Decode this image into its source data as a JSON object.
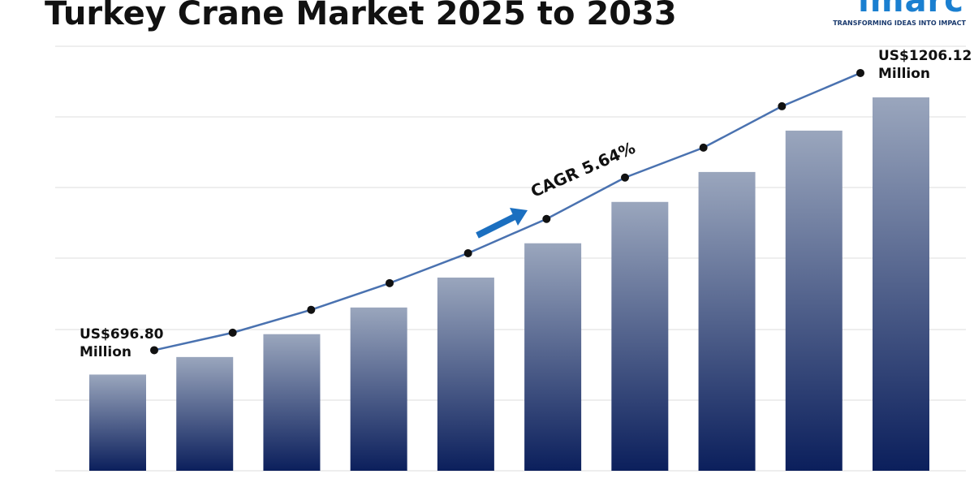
{
  "chart_data": {
    "type": "bar",
    "title": "Turkey Crane Market 2025 to 2033",
    "brand": "imarc",
    "tagline": "TRANSFORMING IDEAS INTO IMPACT",
    "annotation": "CAGR 5.64%",
    "categories": [
      null,
      null,
      null,
      null,
      null,
      null,
      null,
      null,
      null,
      null
    ],
    "values": [
      696.8,
      729,
      771,
      820,
      875,
      938,
      1014,
      1069,
      1145,
      1206.12
    ],
    "value_labels": [
      "US$696.80 Million",
      null,
      null,
      null,
      null,
      null,
      null,
      null,
      null,
      "US$1206.12 Million"
    ],
    "ylim": [
      520,
      1300
    ],
    "color": "#0b1f5c",
    "line_color": "#4a72b0"
  }
}
